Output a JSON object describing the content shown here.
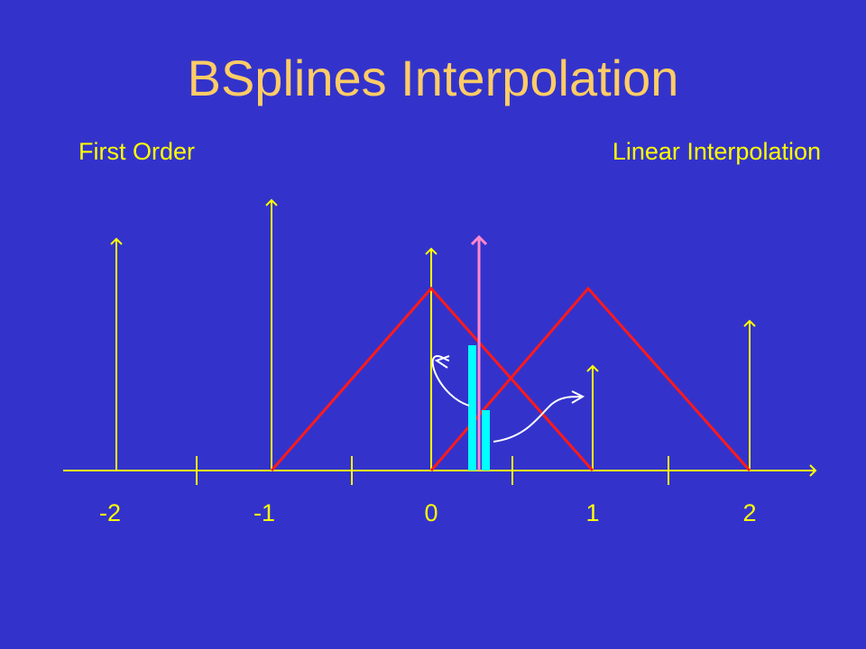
{
  "slide": {
    "title": "BSplines Interpolation",
    "left_caption": "First Order",
    "right_caption": "Linear Interpolation"
  },
  "diagram": {
    "axis_labels": [
      "-2",
      "-1",
      "0",
      "1",
      "2"
    ],
    "colors": {
      "background": "#3333cc",
      "title": "#ffcc66",
      "text": "#ffff00",
      "axis": "#ffff00",
      "basis": "#ff1a1a",
      "sample": "#ff88cc",
      "weight": "#00ffff",
      "arrow": "#ffffff"
    }
  }
}
